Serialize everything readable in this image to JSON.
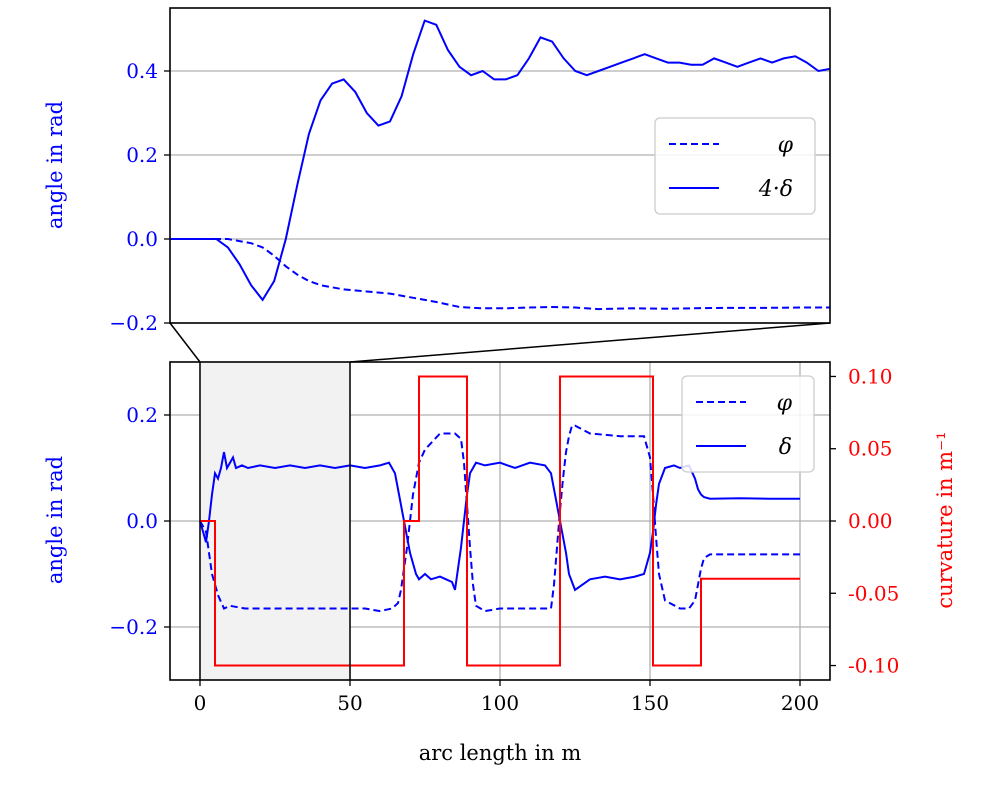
{
  "chart_data": [
    {
      "type": "line",
      "panel": "inset-zoom",
      "ylabel": "angle in rad",
      "xlim": [
        -5,
        52
      ],
      "ylim": [
        -0.2,
        0.55
      ],
      "yticks": [
        -0.2,
        0.0,
        0.2,
        0.4
      ],
      "ytick_labels": [
        "−0.2",
        "0.0",
        "0.2",
        "0.4"
      ],
      "grid": "horizontal",
      "legend": {
        "placement": "right",
        "entries": [
          "φ",
          "4·δ"
        ]
      },
      "colors": {
        "phi": "#0000ff",
        "delta": "#0000ff"
      },
      "series": [
        {
          "name": "φ",
          "style": "dashed",
          "x": [
            -5,
            -1,
            0,
            1,
            2,
            3,
            4,
            5,
            6,
            7,
            8,
            10,
            12,
            14,
            16,
            18,
            20,
            22,
            24,
            26,
            28,
            30,
            32,
            35,
            38,
            40,
            43,
            46,
            50,
            52
          ],
          "y": [
            0.0,
            0.0,
            0.0,
            -0.005,
            -0.01,
            -0.02,
            -0.04,
            -0.065,
            -0.085,
            -0.1,
            -0.11,
            -0.12,
            -0.125,
            -0.13,
            -0.14,
            -0.15,
            -0.162,
            -0.165,
            -0.165,
            -0.163,
            -0.162,
            -0.163,
            -0.167,
            -0.165,
            -0.166,
            -0.165,
            -0.164,
            -0.164,
            -0.163,
            -0.163
          ]
        },
        {
          "name": "4·δ",
          "style": "solid",
          "x": [
            -5,
            -2,
            -1,
            0,
            1,
            2,
            3,
            4,
            5,
            6,
            7,
            8,
            9,
            10,
            11,
            12,
            13,
            14,
            15,
            16,
            17,
            18,
            19,
            20,
            21,
            22,
            23,
            24,
            25,
            26,
            27,
            28,
            29,
            30,
            31,
            32,
            33,
            34,
            35,
            36,
            37,
            38,
            39,
            40,
            41,
            42,
            43,
            44,
            45,
            46,
            47,
            48,
            49,
            50,
            51,
            52
          ],
          "y": [
            0.0,
            0.0,
            0.0,
            -0.02,
            -0.06,
            -0.11,
            -0.145,
            -0.1,
            0.0,
            0.13,
            0.25,
            0.33,
            0.37,
            0.38,
            0.35,
            0.3,
            0.27,
            0.28,
            0.34,
            0.44,
            0.52,
            0.51,
            0.45,
            0.41,
            0.39,
            0.4,
            0.38,
            0.38,
            0.39,
            0.43,
            0.48,
            0.47,
            0.43,
            0.4,
            0.39,
            0.4,
            0.41,
            0.42,
            0.43,
            0.44,
            0.43,
            0.42,
            0.42,
            0.415,
            0.415,
            0.43,
            0.42,
            0.41,
            0.42,
            0.43,
            0.42,
            0.43,
            0.435,
            0.42,
            0.4,
            0.405
          ]
        }
      ]
    },
    {
      "type": "line",
      "panel": "main",
      "xlabel": "arc length in m",
      "ylabel": "angle in rad",
      "ylabel_right": "curvature in m⁻¹",
      "xlim": [
        -10,
        210
      ],
      "ylim": [
        -0.3,
        0.3
      ],
      "ylim_right": [
        -0.11,
        0.11
      ],
      "xticks": [
        0,
        50,
        100,
        150,
        200
      ],
      "xtick_labels": [
        "0",
        "50",
        "100",
        "150",
        "200"
      ],
      "yticks": [
        -0.2,
        0.0,
        0.2
      ],
      "ytick_labels": [
        "−0.2",
        "0.0",
        "0.2"
      ],
      "yticks_right": [
        0.1,
        0.05,
        0.0,
        -0.05,
        -0.1
      ],
      "ytick_labels_right": [
        "0.10",
        "0.05",
        "0.00",
        "-0.05",
        "-0.10"
      ],
      "grid": "both",
      "zoom_region": [
        0,
        50
      ],
      "legend": {
        "placement": "top-right",
        "entries": [
          "φ",
          "δ"
        ]
      },
      "colors": {
        "phi": "#0000ff",
        "delta": "#0000ff",
        "curvature": "#ff0000",
        "zoom_shade": "#f2f2f2"
      },
      "series": [
        {
          "name": "φ",
          "style": "dashed",
          "axis": "left",
          "x": [
            0,
            2,
            4,
            6,
            8,
            10,
            15,
            20,
            30,
            40,
            50,
            55,
            60,
            64,
            66,
            67,
            68,
            69,
            70,
            71,
            72,
            73,
            75,
            80,
            85,
            87,
            88,
            89,
            90,
            91,
            92,
            95,
            100,
            110,
            117,
            118,
            119,
            120,
            121,
            122,
            123,
            124,
            125,
            130,
            140,
            148,
            150,
            151,
            152,
            153,
            155,
            160,
            163,
            165,
            166,
            167,
            168,
            170,
            180,
            190,
            200
          ],
          "y": [
            0.0,
            -0.02,
            -0.1,
            -0.14,
            -0.165,
            -0.16,
            -0.165,
            -0.165,
            -0.165,
            -0.165,
            -0.165,
            -0.165,
            -0.17,
            -0.165,
            -0.155,
            -0.13,
            -0.09,
            -0.05,
            0.0,
            0.05,
            0.08,
            0.11,
            0.135,
            0.165,
            0.165,
            0.155,
            0.11,
            0.03,
            -0.05,
            -0.12,
            -0.16,
            -0.17,
            -0.165,
            -0.165,
            -0.165,
            -0.12,
            -0.05,
            0.02,
            0.08,
            0.13,
            0.16,
            0.18,
            0.18,
            0.165,
            0.16,
            0.16,
            0.12,
            0.05,
            -0.03,
            -0.1,
            -0.15,
            -0.165,
            -0.165,
            -0.15,
            -0.12,
            -0.09,
            -0.07,
            -0.063,
            -0.063,
            -0.063,
            -0.063
          ]
        },
        {
          "name": "δ",
          "style": "solid",
          "axis": "left",
          "x": [
            0,
            1,
            2,
            3,
            4,
            5,
            6,
            7,
            8,
            9,
            10,
            11,
            12,
            14,
            16,
            20,
            25,
            30,
            35,
            40,
            45,
            50,
            55,
            60,
            63,
            65,
            66,
            67,
            68,
            69,
            70,
            71,
            72,
            73,
            75,
            77,
            80,
            82,
            84,
            85,
            86,
            87,
            88,
            89,
            90,
            92,
            95,
            100,
            105,
            110,
            115,
            117,
            118,
            119,
            120,
            121,
            122,
            123,
            125,
            130,
            135,
            140,
            145,
            148,
            150,
            151,
            152,
            153,
            155,
            158,
            160,
            163,
            165,
            166,
            167,
            168,
            170,
            180,
            190,
            200
          ],
          "y": [
            0.0,
            -0.02,
            -0.04,
            0.0,
            0.05,
            0.09,
            0.08,
            0.1,
            0.13,
            0.1,
            0.11,
            0.12,
            0.1,
            0.105,
            0.1,
            0.105,
            0.1,
            0.105,
            0.1,
            0.105,
            0.1,
            0.105,
            0.1,
            0.105,
            0.11,
            0.09,
            0.06,
            0.03,
            0.0,
            -0.03,
            -0.06,
            -0.08,
            -0.1,
            -0.11,
            -0.1,
            -0.11,
            -0.105,
            -0.11,
            -0.115,
            -0.13,
            -0.09,
            -0.05,
            0.0,
            0.05,
            0.09,
            0.11,
            0.105,
            0.11,
            0.1,
            0.11,
            0.105,
            0.09,
            0.06,
            0.03,
            0.0,
            -0.03,
            -0.06,
            -0.1,
            -0.13,
            -0.11,
            -0.105,
            -0.11,
            -0.105,
            -0.1,
            -0.06,
            -0.02,
            0.03,
            0.07,
            0.1,
            0.105,
            0.1,
            0.105,
            0.08,
            0.06,
            0.05,
            0.045,
            0.042,
            0.043,
            0.042,
            0.042
          ]
        },
        {
          "name": "curvature",
          "style": "solid",
          "axis": "right",
          "step": true,
          "x": [
            0,
            5,
            5,
            68,
            68,
            73,
            73,
            89,
            89,
            120,
            120,
            151,
            151,
            167,
            167,
            200
          ],
          "y": [
            0.0,
            0.0,
            -0.1,
            -0.1,
            0.0,
            0.0,
            0.1,
            0.1,
            -0.1,
            -0.1,
            0.1,
            0.1,
            -0.1,
            -0.1,
            -0.04,
            -0.04
          ]
        }
      ]
    }
  ]
}
